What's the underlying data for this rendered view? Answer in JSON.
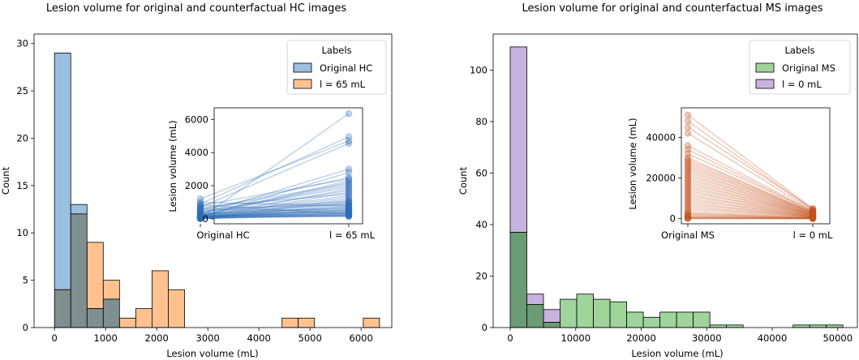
{
  "chart_data": [
    {
      "type": "histogram",
      "title": "Lesion volume for original and counterfactual HC images",
      "xlabel": "Lesion volume (mL)",
      "ylabel": "Count",
      "xlim": [
        -400,
        6600
      ],
      "ylim": [
        0,
        31
      ],
      "xticks": [
        "0",
        "1000",
        "2000",
        "3000",
        "4000",
        "5000",
        "6000"
      ],
      "xtick_values": [
        0,
        1000,
        2000,
        3000,
        4000,
        5000,
        6000
      ],
      "yticks": [
        "0",
        "5",
        "10",
        "15",
        "20",
        "25",
        "30"
      ],
      "ytick_values": [
        0,
        5,
        10,
        15,
        20,
        25,
        30
      ],
      "bin_start": 0,
      "bin_width": 318,
      "series": [
        {
          "name": "Original HC",
          "color": "#9bbfe0",
          "values": [
            29,
            13,
            2,
            3,
            0,
            0,
            0,
            0,
            0,
            0,
            0,
            0,
            0,
            0,
            0,
            0,
            0,
            0,
            0,
            0
          ]
        },
        {
          "name": "l = 65 mL",
          "color": "#ffc28e",
          "values": [
            4,
            12,
            9,
            5,
            1,
            2,
            6,
            4,
            0,
            0,
            0,
            0,
            0,
            0,
            1,
            1,
            0,
            0,
            0,
            1
          ]
        }
      ],
      "overlap_color": "#7f8f8f",
      "legend": {
        "title": "Labels",
        "position": "top-right",
        "entries": [
          "Original HC",
          "l = 65 mL"
        ]
      },
      "inset": {
        "type": "line",
        "ylabel": "Lesion volume (mL)",
        "categories": [
          "Original HC",
          "l = 65 mL"
        ],
        "yticks": [
          "0",
          "2000",
          "4000",
          "6000"
        ],
        "ytick_values": [
          0,
          2000,
          4000,
          6000
        ],
        "ylim": [
          -300,
          6700
        ],
        "color": "#2f6db5",
        "pairs": [
          [
            50,
            6350
          ],
          [
            900,
            4950
          ],
          [
            700,
            4550
          ],
          [
            1200,
            4700
          ],
          [
            300,
            3000
          ],
          [
            100,
            2800
          ],
          [
            500,
            2500
          ],
          [
            800,
            2400
          ],
          [
            200,
            2300
          ],
          [
            150,
            2200
          ],
          [
            600,
            2100
          ],
          [
            400,
            2000
          ],
          [
            350,
            1900
          ],
          [
            100,
            1800
          ],
          [
            250,
            1700
          ],
          [
            50,
            1600
          ],
          [
            700,
            1500
          ],
          [
            200,
            1400
          ],
          [
            120,
            1300
          ],
          [
            30,
            1200
          ],
          [
            80,
            1100
          ],
          [
            450,
            1050
          ],
          [
            40,
            1000
          ],
          [
            260,
            950
          ],
          [
            15,
            900
          ],
          [
            600,
            850
          ],
          [
            60,
            800
          ],
          [
            1000,
            780
          ],
          [
            180,
            720
          ],
          [
            20,
            700
          ],
          [
            320,
            650
          ],
          [
            90,
            600
          ],
          [
            10,
            560
          ],
          [
            140,
            520
          ],
          [
            550,
            500
          ],
          [
            75,
            460
          ],
          [
            220,
            420
          ],
          [
            25,
            400
          ],
          [
            380,
            380
          ],
          [
            110,
            350
          ],
          [
            5,
            320
          ],
          [
            160,
            300
          ],
          [
            850,
            280
          ],
          [
            45,
            260
          ],
          [
            270,
            240
          ],
          [
            12,
            220
          ],
          [
            70,
            200
          ],
          [
            190,
            180
          ],
          [
            35,
            160
          ],
          [
            130,
            140
          ]
        ]
      }
    },
    {
      "type": "histogram",
      "title": "Lesion volume for original and counterfactual MS images",
      "xlabel": "Lesion volume (mL)",
      "ylabel": "Count",
      "xlim": [
        -2600,
        53000
      ],
      "ylim": [
        0,
        114
      ],
      "xticks": [
        "0",
        "10000",
        "20000",
        "30000",
        "40000",
        "50000"
      ],
      "xtick_values": [
        0,
        10000,
        20000,
        30000,
        40000,
        50000
      ],
      "yticks": [
        "0",
        "20",
        "40",
        "60",
        "80",
        "100"
      ],
      "ytick_values": [
        0,
        20,
        40,
        60,
        80,
        100
      ],
      "bin_start": 0,
      "bin_width": 2540,
      "series": [
        {
          "name": "Original MS",
          "color": "#9fd49b",
          "values": [
            37,
            9,
            2,
            11,
            13,
            11,
            10,
            6,
            4,
            6,
            6,
            6,
            1,
            1,
            0,
            0,
            0,
            1,
            1,
            1
          ]
        },
        {
          "name": "l = 0 mL",
          "color": "#c8b2de",
          "values": [
            109,
            13,
            7,
            0,
            0,
            0,
            0,
            0,
            0,
            0,
            0,
            0,
            0,
            0,
            0,
            0,
            0,
            0,
            0,
            0
          ]
        }
      ],
      "overlap_color": "#6b9c75",
      "legend": {
        "title": "Labels",
        "position": "top-right",
        "entries": [
          "Original MS",
          "l = 0 mL"
        ]
      },
      "inset": {
        "type": "line",
        "ylabel": "Lesion volume (mL)",
        "categories": [
          "Original MS",
          "l = 0 mL"
        ],
        "yticks": [
          "0",
          "20000",
          "40000"
        ],
        "ytick_values": [
          0,
          20000,
          40000
        ],
        "ylim": [
          -2500,
          54500
        ],
        "color": "#c2521e",
        "pairs": [
          [
            51000,
            5000
          ],
          [
            48000,
            4500
          ],
          [
            45000,
            4800
          ],
          [
            42000,
            4000
          ],
          [
            36000,
            3800
          ],
          [
            34000,
            3500
          ],
          [
            32000,
            3600
          ],
          [
            30000,
            3000
          ],
          [
            29000,
            3200
          ],
          [
            28000,
            2800
          ],
          [
            27000,
            3000
          ],
          [
            26000,
            2500
          ],
          [
            25000,
            2900
          ],
          [
            24000,
            2200
          ],
          [
            23000,
            2600
          ],
          [
            22000,
            2000
          ],
          [
            21000,
            2400
          ],
          [
            20000,
            1800
          ],
          [
            19000,
            2100
          ],
          [
            18000,
            1600
          ],
          [
            17000,
            2000
          ],
          [
            16000,
            1500
          ],
          [
            15000,
            1800
          ],
          [
            14000,
            1200
          ],
          [
            13000,
            1600
          ],
          [
            12000,
            1000
          ],
          [
            11000,
            1400
          ],
          [
            10000,
            900
          ],
          [
            9000,
            1200
          ],
          [
            8000,
            800
          ],
          [
            7000,
            1000
          ],
          [
            6000,
            700
          ],
          [
            5000,
            900
          ],
          [
            4000,
            600
          ],
          [
            3000,
            500
          ],
          [
            2500,
            400
          ],
          [
            2000,
            300
          ],
          [
            1500,
            250
          ],
          [
            1000,
            200
          ],
          [
            800,
            150
          ],
          [
            500,
            100
          ],
          [
            300,
            80
          ],
          [
            150,
            50
          ],
          [
            50,
            30
          ]
        ]
      }
    }
  ]
}
